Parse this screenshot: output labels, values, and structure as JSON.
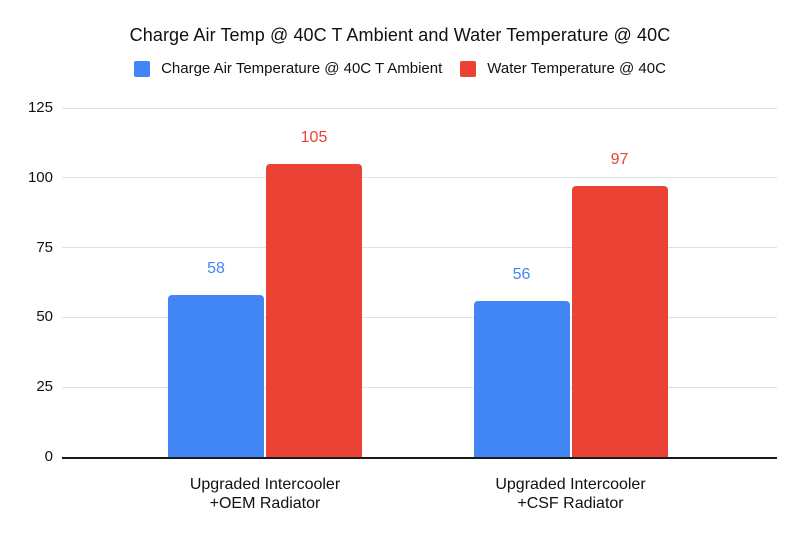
{
  "chart_data": {
    "type": "bar",
    "title": "Charge Air Temp @ 40C T Ambient and Water Temperature @ 40C",
    "categories": [
      "Upgraded Intercooler\n+OEM Radiator",
      "Upgraded Intercooler\n+CSF Radiator"
    ],
    "series": [
      {
        "name": "Charge Air Temperature @ 40C T Ambient",
        "color": "#4285F4",
        "values": [
          58,
          56
        ]
      },
      {
        "name": "Water Temperature @ 40C",
        "color": "#EA4335",
        "values": [
          105,
          97
        ]
      }
    ],
    "yticks": [
      0,
      25,
      50,
      75,
      100,
      125
    ],
    "ylim": [
      0,
      125
    ],
    "grid": true,
    "legend_position": "top",
    "data_labels": true,
    "xlabel": "",
    "ylabel": "",
    "colors": {
      "gridline": "#e0e0e0",
      "axis_line": "#1a1a1a",
      "text": "#111111"
    }
  }
}
